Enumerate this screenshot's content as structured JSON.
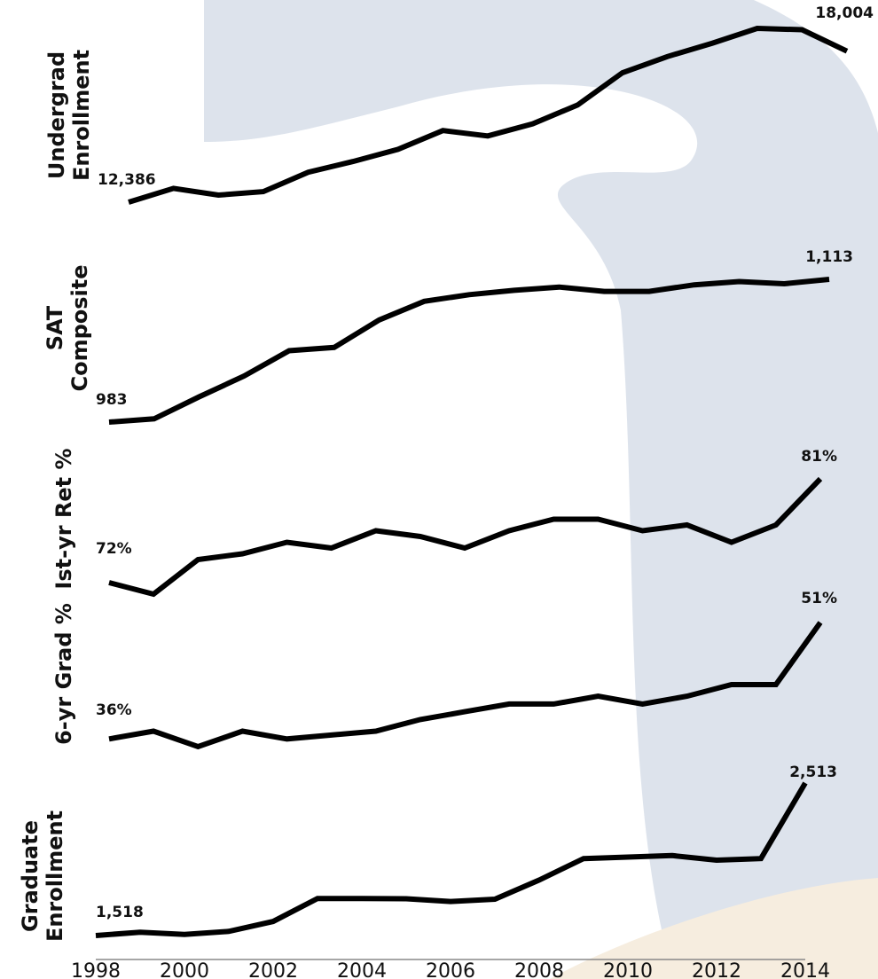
{
  "colors": {
    "line": "#000000",
    "watermark_blue": "#d9e0ea",
    "watermark_tan": "#f6eddf"
  },
  "x_tick_labels": [
    "1998",
    "2000",
    "2002",
    "2004",
    "2006",
    "2008",
    "2010",
    "2012",
    "2014"
  ],
  "chart_data": [
    {
      "type": "line",
      "row_label": [
        "Undergrad",
        "Enrollment"
      ],
      "series": [
        {
          "values": [
            12386,
            12900,
            12650,
            12780,
            13500,
            13900,
            14350,
            15050,
            14850,
            15300,
            16000,
            17200,
            17800,
            18300,
            18850,
            18800,
            18004
          ]
        }
      ],
      "x": [
        1998,
        1999,
        2000,
        2001,
        2002,
        2003,
        2004,
        2005,
        2006,
        2007,
        2008,
        2009,
        2010,
        2011,
        2012,
        2013,
        2014
      ],
      "ylim": [
        12000,
        19000
      ],
      "start_label": "12,386",
      "end_label": "18,004"
    },
    {
      "type": "line",
      "row_label": [
        "SAT",
        "Composite"
      ],
      "series": [
        {
          "values": [
            983,
            986,
            1006,
            1025,
            1048,
            1051,
            1076,
            1093,
            1099,
            1103,
            1106,
            1102,
            1102,
            1108,
            1111,
            1109,
            1113
          ]
        }
      ],
      "x": [
        1998,
        1999,
        2000,
        2001,
        2002,
        2003,
        2004,
        2005,
        2006,
        2007,
        2008,
        2009,
        2010,
        2011,
        2012,
        2013,
        2014
      ],
      "ylim": [
        970,
        1120
      ],
      "start_label": "983",
      "end_label": "1,113"
    },
    {
      "type": "line",
      "row_label": [
        "Ist-yr Ret %"
      ],
      "series": [
        {
          "values": [
            72,
            71,
            74,
            74.5,
            75.5,
            75,
            76.5,
            76,
            75,
            76.5,
            77.5,
            77.5,
            76.5,
            77,
            75.5,
            77,
            81
          ]
        }
      ],
      "x": [
        1998,
        1999,
        2000,
        2001,
        2002,
        2003,
        2004,
        2005,
        2006,
        2007,
        2008,
        2009,
        2010,
        2011,
        2012,
        2013,
        2014
      ],
      "ylim": [
        70,
        82
      ],
      "start_label": "72%",
      "end_label": "81%"
    },
    {
      "type": "line",
      "row_label": [
        "6-yr Grad %"
      ],
      "series": [
        {
          "values": [
            36,
            37,
            35,
            37,
            36,
            36.5,
            37,
            38.5,
            39.5,
            40.5,
            40.5,
            41.5,
            40.5,
            41.5,
            43,
            43,
            51
          ]
        }
      ],
      "x": [
        1998,
        1999,
        2000,
        2001,
        2002,
        2003,
        2004,
        2005,
        2006,
        2007,
        2008,
        2009,
        2010,
        2011,
        2012,
        2013,
        2014
      ],
      "ylim": [
        34,
        52
      ],
      "start_label": "36%",
      "end_label": "51%"
    },
    {
      "type": "line",
      "row_label": [
        "Graduate",
        "Enrollment"
      ],
      "series": [
        {
          "values": [
            1518,
            1540,
            1525,
            1545,
            1610,
            1760,
            1760,
            1758,
            1740,
            1755,
            1880,
            2020,
            2030,
            2040,
            2010,
            2020,
            2513
          ]
        }
      ],
      "x": [
        1998,
        1999,
        2000,
        2001,
        2002,
        2003,
        2004,
        2005,
        2006,
        2007,
        2008,
        2009,
        2010,
        2011,
        2012,
        2013,
        2014
      ],
      "ylim": [
        1480,
        2600
      ],
      "start_label": "1,518",
      "end_label": "2,513"
    }
  ]
}
